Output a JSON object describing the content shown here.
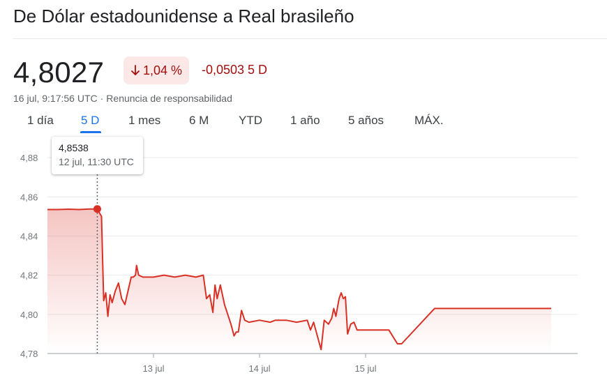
{
  "header": {
    "title": "De Dólar estadounidense a Real brasileño"
  },
  "quote": {
    "price": "4,8027",
    "change_pct": "1,04 %",
    "change_direction": "down",
    "change_abs": "-0,0503 5 D",
    "timestamp": "16 jul, 9:17:56 UTC",
    "separator": "·",
    "disclaimer": "Renuncia de responsabilidad"
  },
  "tabs": [
    {
      "label": "1 día",
      "active": false
    },
    {
      "label": "5 D",
      "active": true
    },
    {
      "label": "1 mes",
      "active": false
    },
    {
      "label": "6 M",
      "active": false
    },
    {
      "label": "YTD",
      "active": false
    },
    {
      "label": "1 año",
      "active": false
    },
    {
      "label": "5 años",
      "active": false
    },
    {
      "label": "MÁX.",
      "active": false
    }
  ],
  "tooltip": {
    "value": "4,8538",
    "time": "12 jul, 11:30 UTC"
  },
  "colors": {
    "line": "#d93025",
    "negative_text": "#a50e0e",
    "negative_bg": "#fce8e6",
    "accent": "#1a73e8",
    "grid": "#e8eaed"
  },
  "chart_data": {
    "type": "line",
    "ylim": [
      4.78,
      4.89
    ],
    "xlim": [
      0,
      5.0
    ],
    "yticks": [
      4.78,
      4.8,
      4.82,
      4.84,
      4.86,
      4.88
    ],
    "ytick_labels": [
      "4,78",
      "4,80",
      "4,82",
      "4,84",
      "4,86",
      "4,88"
    ],
    "xticks": [
      {
        "x": 1.0,
        "label": "13 jul"
      },
      {
        "x": 2.0,
        "label": "14 jul"
      },
      {
        "x": 3.0,
        "label": "15 jul"
      }
    ],
    "highlight": {
      "x": 0.47,
      "y": 4.8538
    },
    "series": [
      {
        "points": [
          [
            0.0,
            4.8535
          ],
          [
            0.1,
            4.8535
          ],
          [
            0.2,
            4.8537
          ],
          [
            0.3,
            4.8535
          ],
          [
            0.4,
            4.8538
          ],
          [
            0.47,
            4.8538
          ],
          [
            0.51,
            4.85
          ],
          [
            0.53,
            4.807
          ],
          [
            0.55,
            4.811
          ],
          [
            0.57,
            4.799
          ],
          [
            0.59,
            4.81
          ],
          [
            0.61,
            4.806
          ],
          [
            0.64,
            4.812
          ],
          [
            0.67,
            4.816
          ],
          [
            0.7,
            4.808
          ],
          [
            0.73,
            4.805
          ],
          [
            0.76,
            4.812
          ],
          [
            0.79,
            4.819
          ],
          [
            0.81,
            4.819
          ],
          [
            0.83,
            4.82
          ],
          [
            0.84,
            4.825
          ],
          [
            0.86,
            4.82
          ],
          [
            0.9,
            4.819
          ],
          [
            1.0,
            4.819
          ],
          [
            1.1,
            4.82
          ],
          [
            1.2,
            4.819
          ],
          [
            1.3,
            4.82
          ],
          [
            1.4,
            4.819
          ],
          [
            1.47,
            4.82
          ],
          [
            1.5,
            4.808
          ],
          [
            1.53,
            4.81
          ],
          [
            1.56,
            4.801
          ],
          [
            1.58,
            4.815
          ],
          [
            1.6,
            4.808
          ],
          [
            1.63,
            4.815
          ],
          [
            1.67,
            4.805
          ],
          [
            1.7,
            4.8
          ],
          [
            1.73,
            4.795
          ],
          [
            1.76,
            4.789
          ],
          [
            1.78,
            4.791
          ],
          [
            1.8,
            4.791
          ],
          [
            1.83,
            4.802
          ],
          [
            1.86,
            4.797
          ],
          [
            1.9,
            4.796
          ],
          [
            2.0,
            4.797
          ],
          [
            2.1,
            4.796
          ],
          [
            2.15,
            4.797
          ],
          [
            2.25,
            4.797
          ],
          [
            2.35,
            4.796
          ],
          [
            2.45,
            4.797
          ],
          [
            2.48,
            4.792
          ],
          [
            2.51,
            4.796
          ],
          [
            2.55,
            4.788
          ],
          [
            2.58,
            4.782
          ],
          [
            2.61,
            4.797
          ],
          [
            2.65,
            4.795
          ],
          [
            2.68,
            4.798
          ],
          [
            2.7,
            4.803
          ],
          [
            2.72,
            4.799
          ],
          [
            2.75,
            4.808
          ],
          [
            2.77,
            4.811
          ],
          [
            2.79,
            4.808
          ],
          [
            2.81,
            4.809
          ],
          [
            2.83,
            4.79
          ],
          [
            2.86,
            4.795
          ],
          [
            2.89,
            4.796
          ],
          [
            2.92,
            4.792
          ],
          [
            3.0,
            4.792
          ],
          [
            3.1,
            4.792
          ],
          [
            3.22,
            4.792
          ],
          [
            3.3,
            4.785
          ],
          [
            3.34,
            4.785
          ],
          [
            3.65,
            4.803
          ],
          [
            4.0,
            4.803
          ],
          [
            4.5,
            4.803
          ],
          [
            4.75,
            4.803
          ]
        ]
      }
    ]
  }
}
